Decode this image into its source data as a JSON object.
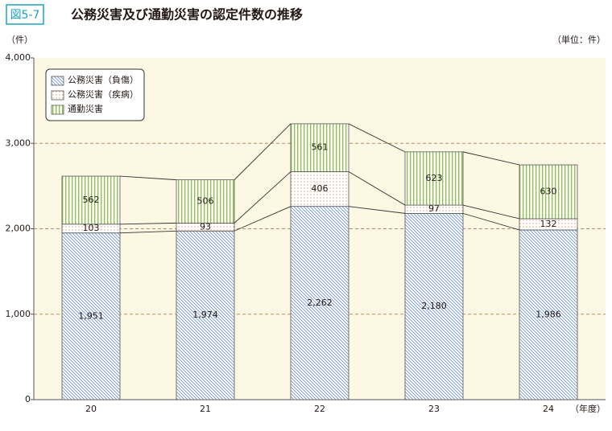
{
  "chart_data": {
    "type": "stacked_bar",
    "figure_label": "図5-7",
    "title": "公務災害及び通勤災害の認定件数の推移",
    "y_unit": "（件）",
    "unit_note": "（単位：件）",
    "x_label": "（年度）",
    "categories": [
      "20",
      "21",
      "22",
      "23",
      "24"
    ],
    "series": [
      {
        "name": "公務災害（負傷）",
        "color": "#6e93cf",
        "values": [
          1951,
          1974,
          2262,
          2180,
          1986
        ],
        "value_labels": [
          "1,951",
          "1,974",
          "2,262",
          "2,180",
          "1,986"
        ]
      },
      {
        "name": "公務災害（疾病）",
        "color": "#ee9a6a",
        "values": [
          103,
          93,
          406,
          97,
          132
        ]
      },
      {
        "name": "通勤災害",
        "color": "#8fc24e",
        "values": [
          562,
          506,
          561,
          623,
          630
        ]
      }
    ],
    "ylim": [
      0,
      4000
    ],
    "yticks": [
      0,
      {
        "value": 1000,
        "label": "1,000"
      },
      {
        "value": 2000,
        "label": "2,000"
      },
      {
        "value": 3000,
        "label": "3,000"
      },
      {
        "value": 4000,
        "label": "4,000"
      }
    ],
    "grid": true
  }
}
